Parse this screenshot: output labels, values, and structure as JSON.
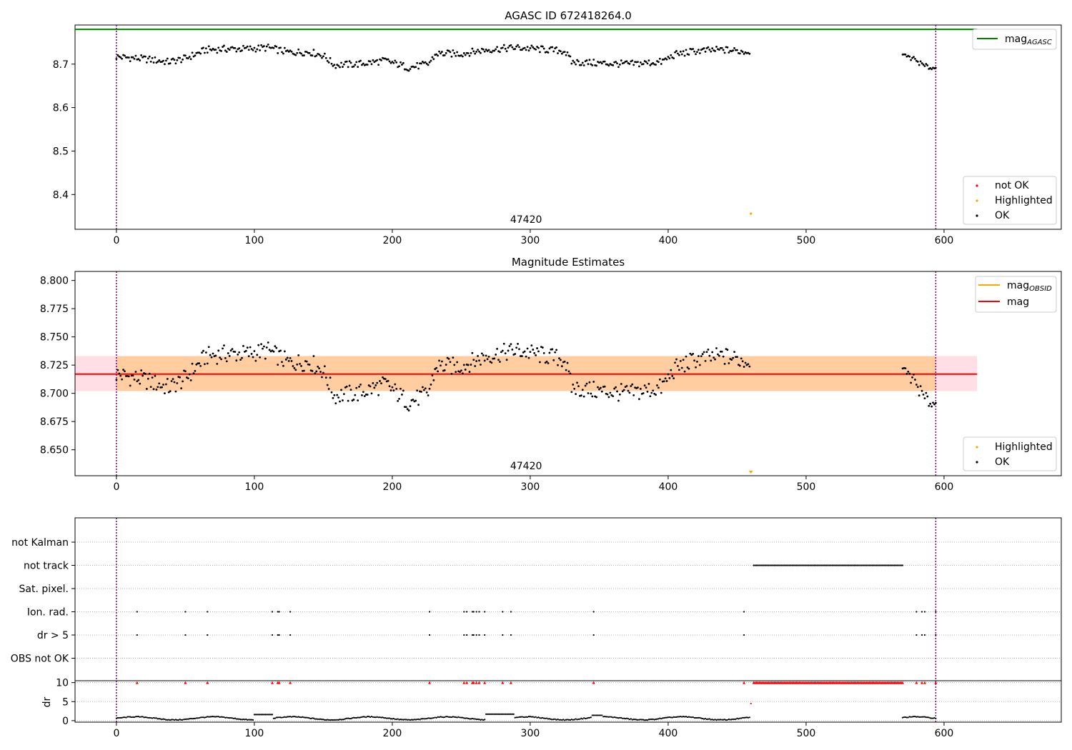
{
  "chart_data": [
    {
      "type": "scatter",
      "id": "agasc",
      "title": "AGASC ID 672418264.0",
      "xlim": [
        -30,
        685
      ],
      "ylim": [
        8.32,
        8.79
      ],
      "xticks": [
        0,
        100,
        200,
        300,
        400,
        500,
        600
      ],
      "xtick_labels": [
        "0",
        "100",
        "200",
        "300",
        "400",
        "500",
        "600"
      ],
      "yticks": [
        8.4,
        8.5,
        8.6,
        8.7
      ],
      "ytick_labels": [
        "8.4",
        "8.5",
        "8.6",
        "8.7"
      ],
      "obsid_label": "47420",
      "obsid_label_x": 297,
      "obs_boundaries": [
        0,
        594
      ],
      "agasc_mag": 8.78,
      "agasc_mag_x": [
        -30,
        624
      ],
      "highlighted_points": [
        [
          460,
          8.356
        ]
      ],
      "legend_line": {
        "label": "mag",
        "sub": "AGASC",
        "color": "#008000"
      },
      "legend_points": [
        {
          "label": "not OK",
          "color": "#ff0000"
        },
        {
          "label": "Highlighted",
          "color": "#ffa500"
        },
        {
          "label": "OK",
          "color": "#000000"
        }
      ]
    },
    {
      "type": "scatter",
      "id": "estimates",
      "title": "Magnitude Estimates",
      "xlim": [
        -30,
        685
      ],
      "ylim": [
        8.627,
        8.808
      ],
      "xticks": [
        0,
        100,
        200,
        300,
        400,
        500,
        600
      ],
      "xtick_labels": [
        "0",
        "100",
        "200",
        "300",
        "400",
        "500",
        "600"
      ],
      "yticks": [
        8.65,
        8.675,
        8.7,
        8.725,
        8.75,
        8.775,
        8.8
      ],
      "ytick_labels": [
        "8.650",
        "8.675",
        "8.700",
        "8.725",
        "8.750",
        "8.775",
        "8.800"
      ],
      "obsid_label": "47420",
      "obsid_label_x": 297,
      "obs_boundaries": [
        0,
        594
      ],
      "mag": 8.717,
      "mag_band": [
        8.702,
        8.733
      ],
      "mag_x": [
        -30,
        624
      ],
      "obsid_band_x": [
        0,
        594
      ],
      "highlighted_marker_x": 460,
      "legend_lines": [
        {
          "label": "mag",
          "sub": "OBSID",
          "color": "#ffa500"
        },
        {
          "label": "mag",
          "sub": "",
          "color": "#ff0000"
        }
      ],
      "legend_points": [
        {
          "label": "Highlighted",
          "color": "#ffa500"
        },
        {
          "label": "OK",
          "color": "#000000"
        }
      ]
    },
    {
      "type": "scatter",
      "id": "flags",
      "xlim": [
        -30,
        685
      ],
      "categories": [
        "not Kalman",
        "not track",
        "Sat. pixel.",
        "Ion. rad.",
        "dr > 5",
        "OBS not OK"
      ],
      "obs_boundaries": [
        0,
        594
      ],
      "ion_rad_x": [
        15,
        50,
        66,
        113,
        117,
        118,
        126,
        227,
        252,
        254,
        258,
        259,
        261,
        263,
        267,
        280,
        286,
        346,
        455,
        580,
        584,
        586,
        594
      ],
      "not_track_range": [
        462,
        570
      ]
    },
    {
      "type": "scatter",
      "id": "dr",
      "ylabel": "dr",
      "xlim": [
        -30,
        685
      ],
      "ylim": [
        -0.4,
        10.5
      ],
      "yticks": [
        0,
        5,
        10
      ],
      "ytick_labels": [
        "0",
        "5",
        "10"
      ],
      "xticks": [
        0,
        100,
        200,
        300,
        400,
        500,
        600
      ],
      "xtick_labels": [
        "0",
        "100",
        "200",
        "300",
        "400",
        "500",
        "600"
      ],
      "obs_boundaries": [
        0,
        594
      ],
      "clipped_x": [
        15,
        50,
        66,
        113,
        117,
        118,
        126,
        227,
        252,
        254,
        258,
        259,
        261,
        263,
        267,
        280,
        286,
        346,
        455,
        580,
        584,
        586,
        594
      ],
      "clipped_range": [
        462,
        570
      ],
      "extra_point": [
        460,
        4.5
      ]
    }
  ]
}
